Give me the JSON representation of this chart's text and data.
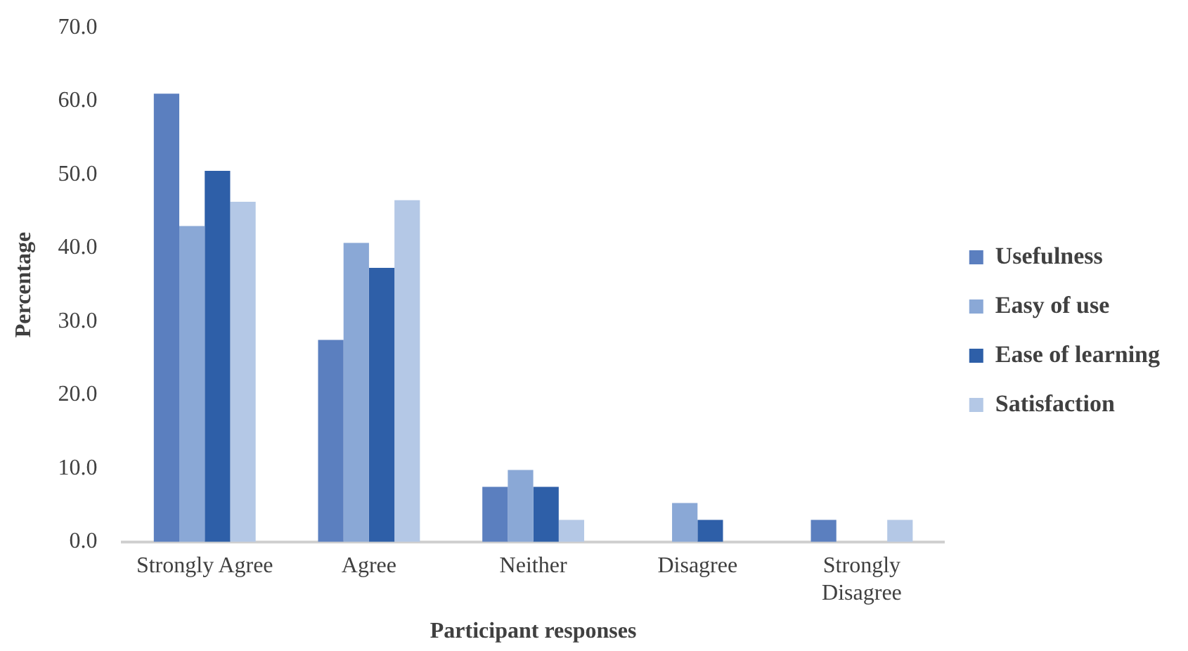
{
  "chart_data": {
    "type": "bar",
    "xlabel": "Participant responses",
    "ylabel": "Percentage",
    "categories": [
      "Strongly Agree",
      "Agree",
      "Neither",
      "Disagree",
      "Strongly Disagree"
    ],
    "series": [
      {
        "name": "Usefulness",
        "color": "#5b7fbf",
        "values": [
          61,
          27.5,
          7.5,
          0,
          3
        ]
      },
      {
        "name": "Easy of use",
        "color": "#8aa8d6",
        "values": [
          43,
          40.7,
          9.8,
          5.3,
          0
        ]
      },
      {
        "name": "Ease of learning",
        "color": "#2e5fa8",
        "values": [
          50.5,
          37.3,
          7.5,
          3,
          0
        ]
      },
      {
        "name": "Satisfaction",
        "color": "#b4c8e6",
        "values": [
          46.3,
          46.5,
          3,
          0,
          3
        ]
      }
    ],
    "ylim": [
      0,
      70
    ],
    "yticks": [
      {
        "value": 0,
        "label": "0.0"
      },
      {
        "value": 10,
        "label": "10.0"
      },
      {
        "value": 20,
        "label": "20.0"
      },
      {
        "value": 30,
        "label": "30.0"
      },
      {
        "value": 40,
        "label": "40.0"
      },
      {
        "value": 50,
        "label": "50.0"
      },
      {
        "value": 60,
        "label": "60.0"
      },
      {
        "value": 70,
        "label": "70.0"
      }
    ],
    "grid": false,
    "legend": "right"
  }
}
